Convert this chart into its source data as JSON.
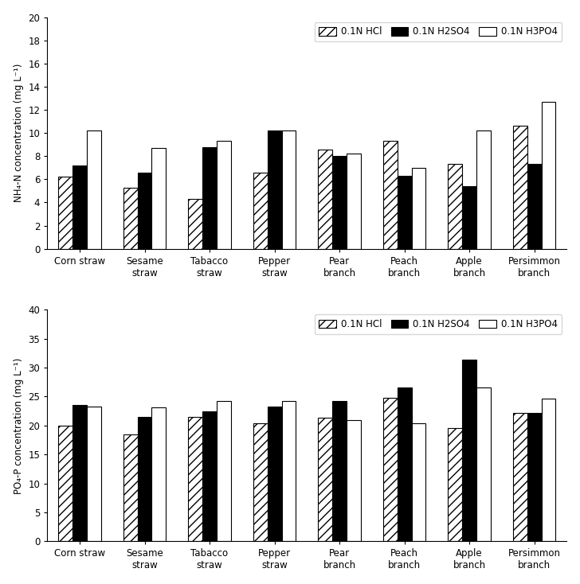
{
  "categories": [
    "Corn straw",
    "Sesame\nstraw",
    "Tabacco\nstraw",
    "Pepper\nstraw",
    "Pear\nbranch",
    "Peach\nbranch",
    "Apple\nbranch",
    "Persimmon\nbranch"
  ],
  "top": {
    "ylabel": "NH₄-N concentration (mg L⁻¹)",
    "ylim": [
      0,
      20
    ],
    "yticks": [
      0,
      2,
      4,
      6,
      8,
      10,
      12,
      14,
      16,
      18,
      20
    ],
    "hcl": [
      6.2,
      5.3,
      4.3,
      6.6,
      8.6,
      9.3,
      7.3,
      10.6
    ],
    "h2so4": [
      7.2,
      6.6,
      8.8,
      10.2,
      8.0,
      6.3,
      5.4,
      7.3
    ],
    "h3po4": [
      10.2,
      8.7,
      9.3,
      10.2,
      8.2,
      7.0,
      10.2,
      12.7
    ]
  },
  "bottom": {
    "ylabel": "PO₄-P concentration (mg L⁻¹)",
    "ylim": [
      0,
      40
    ],
    "yticks": [
      0,
      5,
      10,
      15,
      20,
      25,
      30,
      35,
      40
    ],
    "hcl": [
      20.0,
      18.4,
      21.5,
      20.4,
      21.3,
      24.8,
      19.5,
      22.2
    ],
    "h2so4": [
      23.6,
      21.5,
      22.5,
      23.3,
      24.2,
      26.6,
      31.4,
      22.2
    ],
    "h3po4": [
      23.3,
      23.2,
      24.2,
      24.2,
      21.0,
      20.4,
      26.6,
      24.7
    ]
  },
  "legend_labels": [
    "0.1N HCl",
    "0.1N H2SO4",
    "0.1N H3PO4"
  ],
  "bar_width": 0.22
}
